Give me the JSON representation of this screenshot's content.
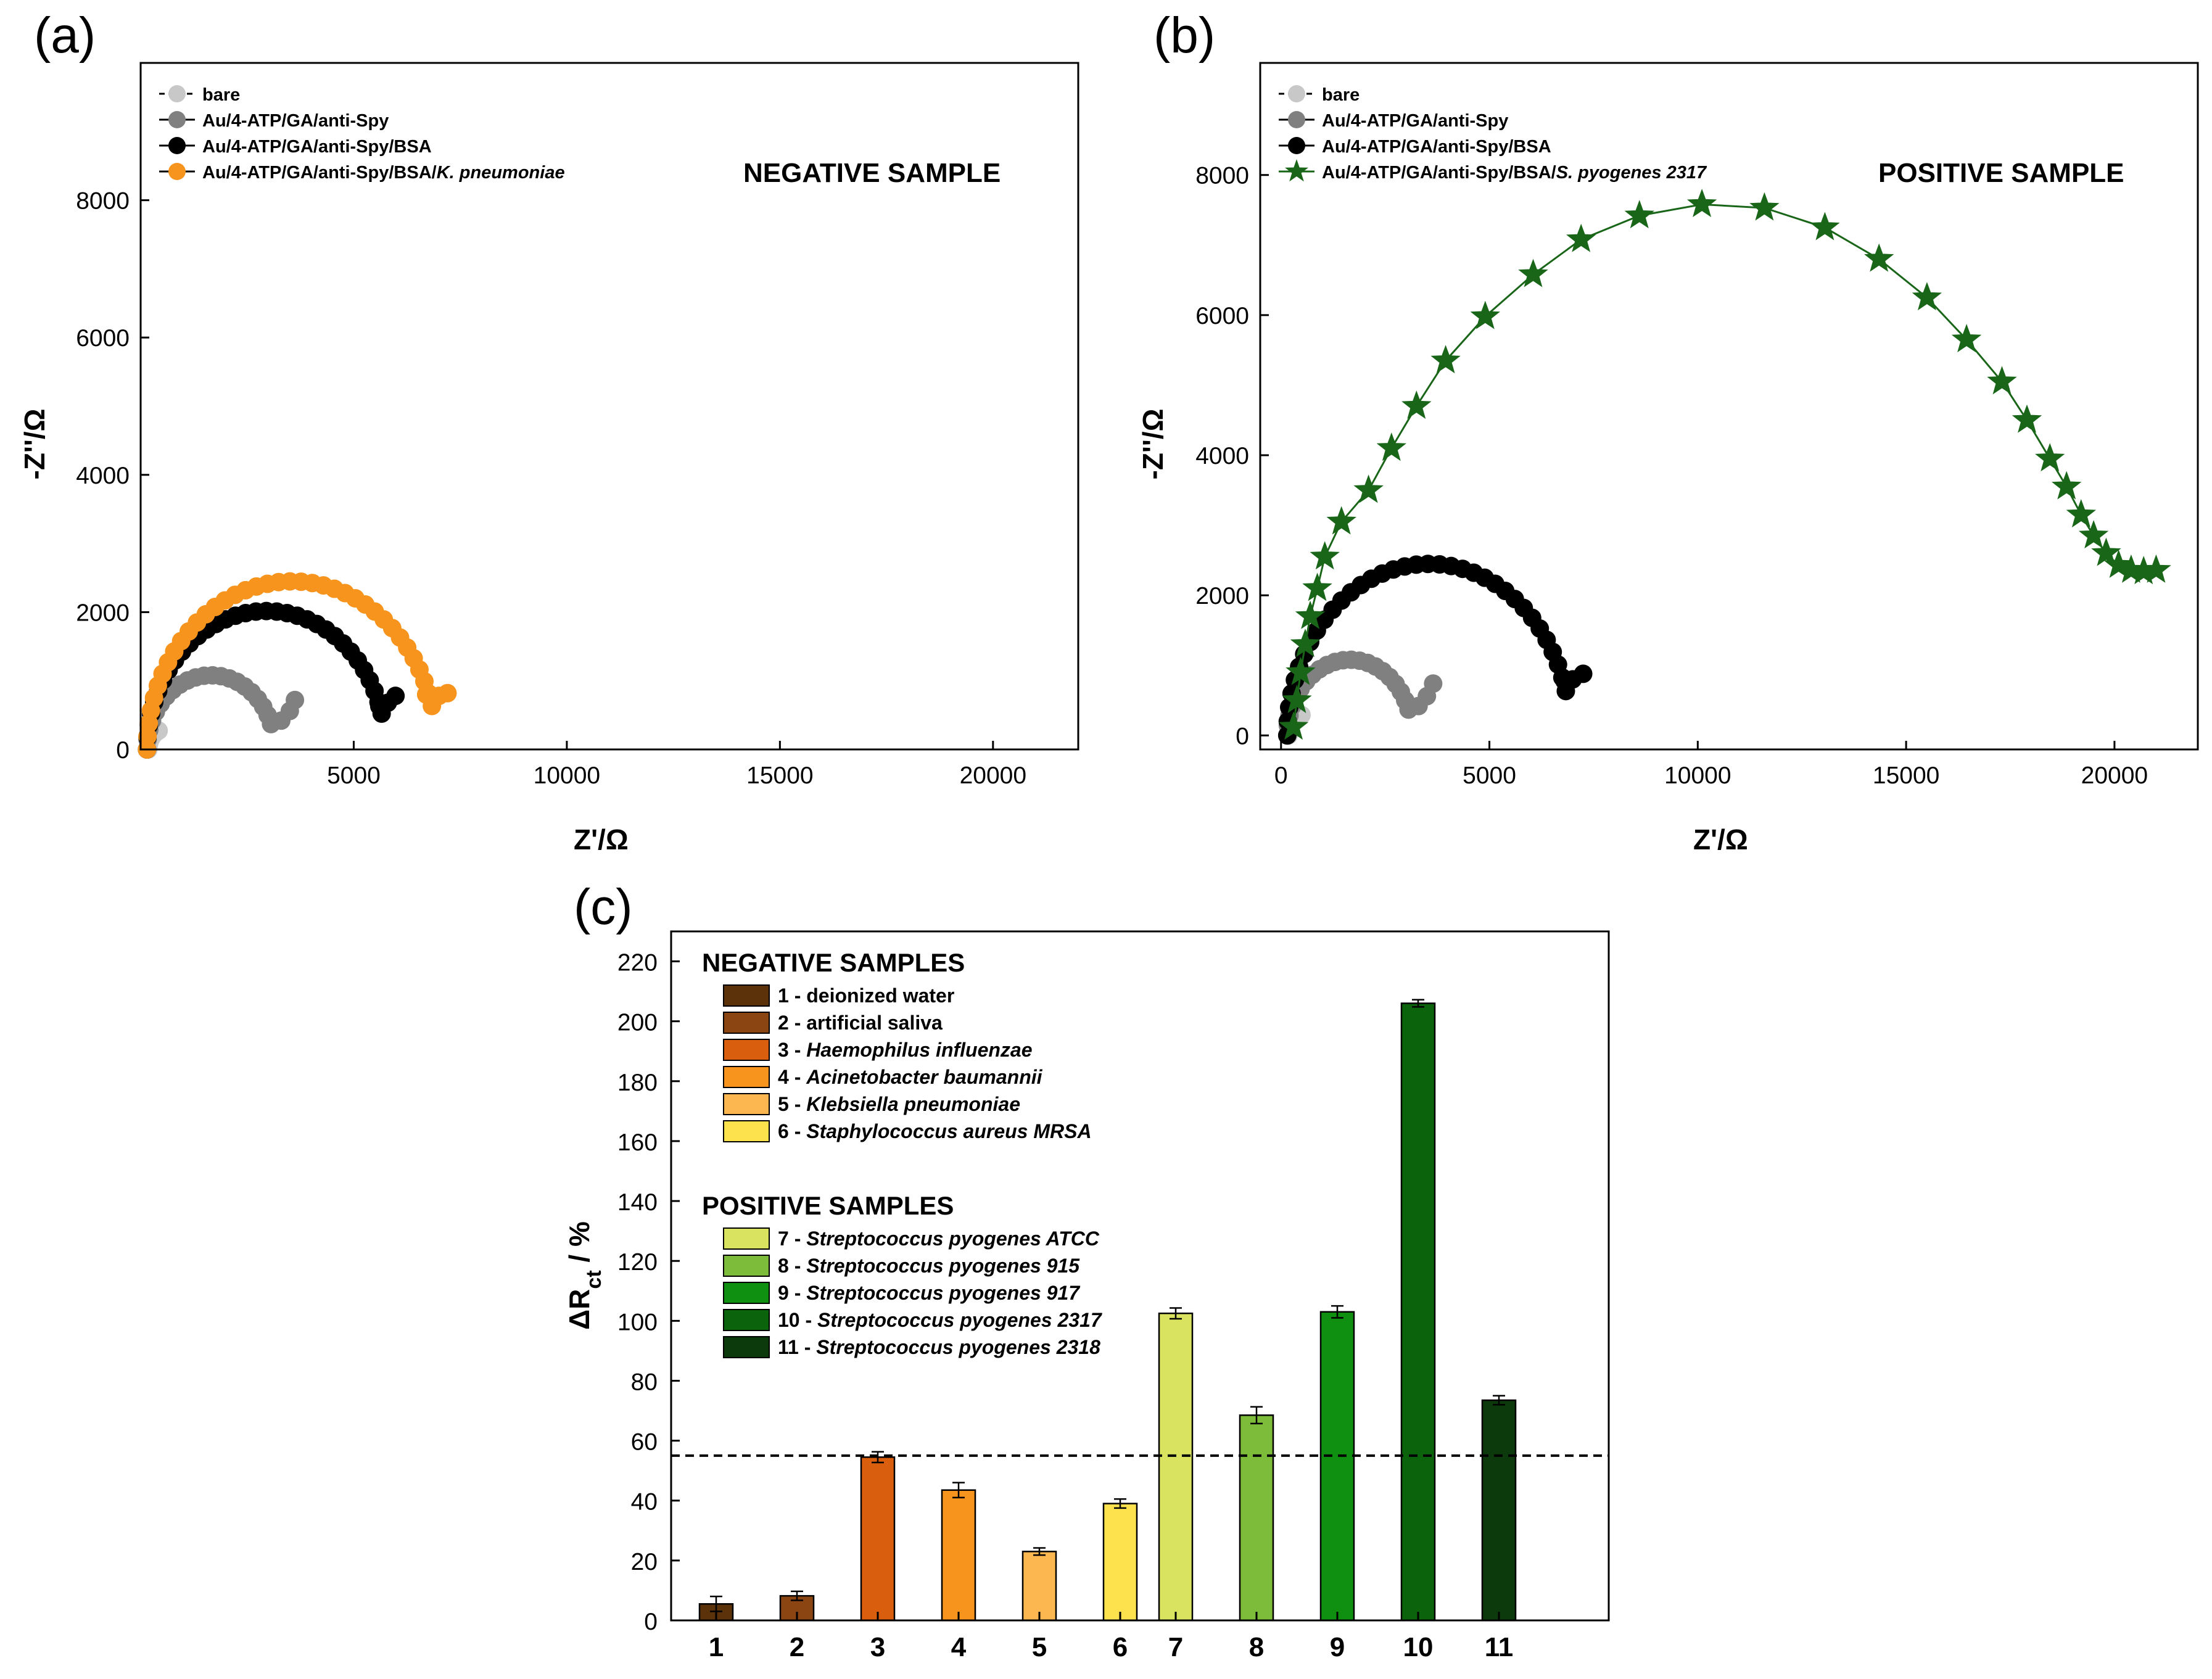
{
  "chart_data": [
    {
      "id": "a",
      "type": "scatter",
      "panel_label": "(a)",
      "annotation": "NEGATIVE SAMPLE",
      "xlabel": "Z'/Ω",
      "ylabel": "-Z''/Ω",
      "xlim": [
        0,
        22000
      ],
      "ylim": [
        0,
        10000
      ],
      "xticks": [
        5000,
        10000,
        15000,
        20000
      ],
      "yticks": [
        0,
        2000,
        4000,
        6000,
        8000
      ],
      "series": [
        {
          "name": "bare",
          "color": "#c8c8c8",
          "marker": "circle",
          "line": "dash",
          "center": 600,
          "radius": 420,
          "rot": 0.12,
          "end_deg": 65,
          "n": 10
        },
        {
          "name": "Au/4-ATP/GA/anti-Spy",
          "color": "#808080",
          "marker": "circle",
          "line": "none",
          "center": 1650,
          "radius": 1500,
          "rot": 0.2,
          "end_deg": 160,
          "tail": [
            [
              3300,
              420
            ],
            [
              3500,
              560
            ],
            [
              3620,
              720
            ]
          ],
          "n": 22
        },
        {
          "name": "Au/4-ATP/GA/anti-Spy/BSA",
          "color": "#000000",
          "marker": "circle",
          "line": "none",
          "center": 2950,
          "radius": 2800,
          "rot": 0.2,
          "end_deg": 165,
          "tail": [
            [
              5600,
              630
            ],
            [
              5800,
              680
            ],
            [
              5980,
              780
            ]
          ],
          "n": 34
        },
        {
          "name_prefix": "Au/4-ATP/GA/anti-Spy/BSA/",
          "name_italic": "K. pneumoniae",
          "color": "#f7941d",
          "marker": "circle",
          "line": "none",
          "center": 3550,
          "radius": 3400,
          "rot": 0.2,
          "end_deg": 165,
          "tail": [
            [
              6700,
              800
            ],
            [
              7000,
              780
            ],
            [
              7200,
              820
            ]
          ],
          "n": 38
        }
      ]
    },
    {
      "id": "b",
      "type": "scatter",
      "panel_label": "(b)",
      "annotation": "POSITIVE SAMPLE",
      "xlabel": "Z'/Ω",
      "ylabel": "-Z''/Ω",
      "xlim": [
        -500,
        22000
      ],
      "ylim": [
        -200,
        9600
      ],
      "xticks": [
        0,
        5000,
        10000,
        15000,
        20000
      ],
      "yticks": [
        0,
        2000,
        4000,
        6000,
        8000
      ],
      "series": [
        {
          "name": "bare",
          "color": "#c8c8c8",
          "marker": "circle",
          "line": "dash",
          "center": 600,
          "radius": 420,
          "rot": 0.12,
          "end_deg": 75,
          "n": 10
        },
        {
          "name": "Au/4-ATP/GA/anti-Spy",
          "color": "#808080",
          "marker": "circle",
          "line": "none",
          "center": 1650,
          "radius": 1500,
          "rot": 0.2,
          "end_deg": 160,
          "tail": [
            [
              3300,
              420
            ],
            [
              3500,
              560
            ],
            [
              3650,
              740
            ]
          ],
          "n": 22
        },
        {
          "name": "Au/4-ATP/GA/anti-Spy/BSA",
          "color": "#000000",
          "marker": "circle",
          "line": "none",
          "center": 3550,
          "radius": 3400,
          "rot": 0.2,
          "end_deg": 165,
          "tail": [
            [
              6800,
              780
            ],
            [
              7000,
              800
            ],
            [
              7250,
              880
            ]
          ],
          "n": 36
        },
        {
          "name_prefix": "Au/4-ATP/GA/anti-Spy/BSA/",
          "name_italic": "S. pyogenes 2317",
          "color": "#196619",
          "marker": "star",
          "line": "solid",
          "points": [
            [
              300,
              120
            ],
            [
              380,
              500
            ],
            [
              470,
              900
            ],
            [
              580,
              1300
            ],
            [
              700,
              1700
            ],
            [
              870,
              2100
            ],
            [
              1050,
              2550
            ],
            [
              1450,
              3050
            ],
            [
              2100,
              3500
            ],
            [
              2650,
              4100
            ],
            [
              3250,
              4700
            ],
            [
              3950,
              5350
            ],
            [
              4900,
              5980
            ],
            [
              6050,
              6580
            ],
            [
              7200,
              7080
            ],
            [
              8600,
              7420
            ],
            [
              10100,
              7580
            ],
            [
              11600,
              7530
            ],
            [
              13050,
              7250
            ],
            [
              14350,
              6800
            ],
            [
              15500,
              6250
            ],
            [
              16450,
              5650
            ],
            [
              17300,
              5050
            ],
            [
              17900,
              4500
            ],
            [
              18450,
              3950
            ],
            [
              18850,
              3550
            ],
            [
              19200,
              3150
            ],
            [
              19500,
              2850
            ],
            [
              19800,
              2600
            ],
            [
              20100,
              2430
            ],
            [
              20400,
              2360
            ],
            [
              20700,
              2340
            ],
            [
              21000,
              2360
            ]
          ]
        }
      ]
    },
    {
      "id": "c",
      "type": "bar",
      "panel_label": "(c)",
      "ylabel": "ΔRct / %",
      "ylabel_main": "ΔR",
      "ylabel_sub": "ct",
      "ylabel_tail": " / %",
      "ylim": [
        0,
        230
      ],
      "yticks": [
        0,
        20,
        40,
        60,
        80,
        100,
        120,
        140,
        160,
        180,
        200,
        220
      ],
      "threshold": 55,
      "categories": [
        "1",
        "2",
        "3",
        "4",
        "5",
        "6",
        "7",
        "8",
        "9",
        "10",
        "11"
      ],
      "values": [
        5.5,
        8.2,
        54.5,
        43.5,
        23,
        39,
        102.5,
        68.5,
        103,
        206,
        73.5
      ],
      "errors": [
        2.5,
        1.5,
        1.8,
        2.5,
        1.2,
        1.5,
        1.8,
        2.8,
        2.0,
        1.2,
        1.5
      ],
      "colors": [
        "#5b320a",
        "#8b4513",
        "#d95f0e",
        "#f7941d",
        "#fdb750",
        "#fde14d",
        "#d9e35f",
        "#7dbb3a",
        "#109010",
        "#0b640b",
        "#0c3a0c"
      ],
      "legend_groups": [
        {
          "title": "NEGATIVE SAMPLES",
          "items": [
            {
              "num": "1 - ",
              "name": "deionized water",
              "italic": false
            },
            {
              "num": "2 - ",
              "name": "artificial saliva",
              "italic": false
            },
            {
              "num": "3 - ",
              "name": "Haemophilus influenzae",
              "italic": true
            },
            {
              "num": "4 - ",
              "name": "Acinetobacter baumannii",
              "italic": true
            },
            {
              "num": "5 - ",
              "name": "Klebsiella pneumoniae",
              "italic": true
            },
            {
              "num": "6 - ",
              "name": "Staphylococcus aureus MRSA",
              "italic": true
            }
          ]
        },
        {
          "title": "POSITIVE SAMPLES",
          "items": [
            {
              "num": "7 - ",
              "name": "Streptococcus pyogenes ATCC",
              "italic": true
            },
            {
              "num": "8 - ",
              "name": "Streptococcus pyogenes 915",
              "italic": true
            },
            {
              "num": "9 - ",
              "name": "Streptococcus pyogenes 917",
              "italic": true
            },
            {
              "num": "10 - ",
              "name": "Streptococcus pyogenes 2317",
              "italic": true
            },
            {
              "num": "11 - ",
              "name": "Streptococcus pyogenes 2318",
              "italic": true
            }
          ]
        }
      ]
    }
  ]
}
